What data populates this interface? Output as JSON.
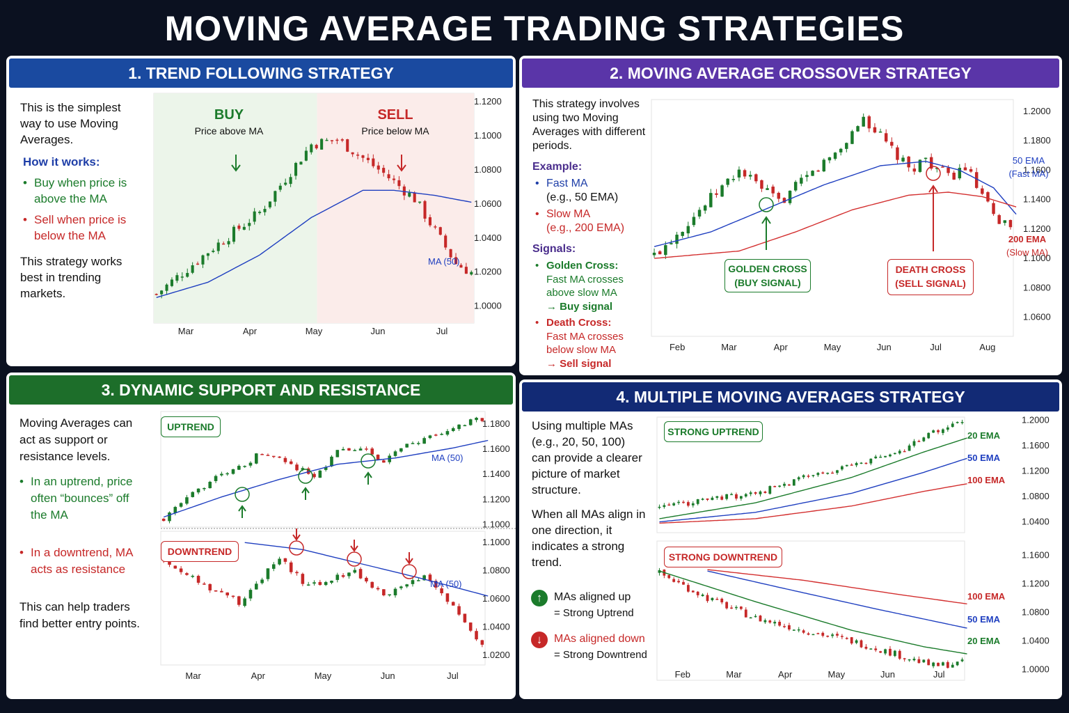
{
  "title": "MOVING  AVERAGE TRADING STRATEGIES",
  "colors": {
    "bg": "#0b1120",
    "p1_header": "#1a4aa0",
    "p2_header": "#5a35a8",
    "p3_header": "#1d6e2a",
    "p4_header": "#122a75",
    "bull": "#1b7b2b",
    "bear": "#c62828",
    "ma_blue": "#1f3fc0",
    "ma_green": "#1b7b2b",
    "ma_red": "#d32f2f"
  },
  "panel1": {
    "header": "1. TREND FOLLOWING STRATEGY",
    "intro": "This is the simplest way to use Moving Averages.",
    "how_title": "How it works:",
    "buy_kw": "Buy",
    "buy_rest": " when price is above the MA",
    "sell_kw": "Sell",
    "sell_rest": " when price is below the MA",
    "outro": "This strategy works best in trending markets.",
    "buy_label": "BUY",
    "buy_sub": "Price above MA",
    "sell_label": "SELL",
    "sell_sub": "Price below MA",
    "ma_label": "MA (50)"
  },
  "panel2": {
    "header": "2. MOVING AVERAGE CROSSOVER STRATEGY",
    "intro": "This strategy involves using two Moving Averages with different periods.",
    "example_title": "Example:",
    "fast_kw": "Fast MA",
    "fast_sub": "(e.g., 50 EMA)",
    "slow_kw": "Slow MA",
    "slow_sub": "(e.g., 200 EMA)",
    "signals_title": "Signals:",
    "golden_kw": "Golden Cross:",
    "golden_l1": "Fast MA crosses",
    "golden_l2": "above slow MA",
    "golden_l3": "→ Buy signal",
    "death_kw": "Death Cross:",
    "death_l1": "Fast MA crosses",
    "death_l2": "below slow MA",
    "death_l3": "→ Sell signal",
    "golden_tag_1": "GOLDEN CROSS",
    "golden_tag_2": "(BUY SIGNAL)",
    "death_tag_1": "DEATH CROSS",
    "death_tag_2": "(SELL SIGNAL)",
    "fast_label_1": "50 EMA",
    "fast_label_2": "(Fast MA)",
    "slow_label_1": "200 EMA",
    "slow_label_2": "(Slow MA)"
  },
  "panel3": {
    "header": "3. DYNAMIC SUPPORT AND RESISTANCE",
    "intro": "Moving Averages can act as support or resistance levels.",
    "up_kw": "In an uptrend",
    "up_rest": ", price often “bounces” off the MA",
    "down_text": "In a downtrend, MA acts as resistance",
    "outro": "This can help traders find better entry points.",
    "uptrend_tag": "UPTREND",
    "downtrend_tag": "DOWNTREND",
    "ma_label": "MA (50)"
  },
  "panel4": {
    "header": "4. MULTIPLE MOVING AVERAGES STRATEGY",
    "intro": "Using multiple MAs (e.g., 20, 50, 100) can provide a clearer picture of market structure.",
    "mid": "When all MAs align in one direction, it indicates a strong trend.",
    "up_l1": "MAs aligned up",
    "up_l2": "= Strong Uptrend",
    "down_l1": "MAs aligned down",
    "down_l2": "= Strong Downtrend",
    "strong_up_tag": "STRONG UPTREND",
    "strong_down_tag": "STRONG DOWNTREND",
    "ema20": "20 EMA",
    "ema50": "50 EMA",
    "ema100": "100 EMA"
  },
  "chart_data": [
    {
      "id": "trend-following",
      "type": "candlestick",
      "x_ticks": [
        "Mar",
        "Apr",
        "May",
        "Jun",
        "Jul"
      ],
      "y_ticks": [
        "1.1200",
        "1.1000",
        "1.0800",
        "1.0600",
        "1.0400",
        "1.0200",
        "1.0000"
      ],
      "ylim": [
        0.99,
        1.125
      ],
      "n": 62,
      "close_path": [
        [
          0,
          1.007
        ],
        [
          10,
          1.032
        ],
        [
          20,
          1.055
        ],
        [
          30,
          1.095
        ],
        [
          35,
          1.098
        ],
        [
          44,
          1.078
        ],
        [
          50,
          1.063
        ],
        [
          58,
          1.025
        ],
        [
          62,
          1.018
        ]
      ],
      "series": [
        {
          "name": "MA (50)",
          "path": [
            [
              0,
              1.005
            ],
            [
              10,
              1.014
            ],
            [
              20,
              1.03
            ],
            [
              30,
              1.052
            ],
            [
              40,
              1.068
            ],
            [
              46,
              1.068
            ],
            [
              54,
              1.065
            ],
            [
              61,
              1.061
            ]
          ]
        }
      ],
      "annotations": [
        "BUY",
        "SELL"
      ]
    },
    {
      "id": "crossover",
      "type": "candlestick",
      "x_ticks": [
        "Feb",
        "Mar",
        "Apr",
        "May",
        "Jun",
        "Jul",
        "Aug"
      ],
      "y_ticks": [
        "1.2000",
        "1.1800",
        "1.1600",
        "1.1400",
        "1.1200",
        "1.1000",
        "1.0800",
        "1.0600"
      ],
      "ylim": [
        1.047,
        1.208
      ],
      "n": 64,
      "close_path": [
        [
          0,
          1.102
        ],
        [
          15,
          1.16
        ],
        [
          22,
          1.138
        ],
        [
          33,
          1.175
        ],
        [
          37,
          1.196
        ],
        [
          45,
          1.16
        ],
        [
          48,
          1.168
        ],
        [
          52,
          1.155
        ],
        [
          55,
          1.162
        ],
        [
          60,
          1.128
        ],
        [
          64,
          1.12
        ]
      ],
      "series": [
        {
          "name": "50 EMA",
          "path": [
            [
              0,
              1.108
            ],
            [
              10,
              1.118
            ],
            [
              20,
              1.134
            ],
            [
              30,
              1.15
            ],
            [
              40,
              1.163
            ],
            [
              48,
              1.166
            ],
            [
              54,
              1.16
            ],
            [
              60,
              1.148
            ],
            [
              64,
              1.13
            ]
          ]
        },
        {
          "name": "200 EMA",
          "path": [
            [
              0,
              1.1
            ],
            [
              15,
              1.105
            ],
            [
              25,
              1.118
            ],
            [
              35,
              1.133
            ],
            [
              45,
              1.143
            ],
            [
              52,
              1.145
            ],
            [
              58,
              1.142
            ],
            [
              64,
              1.135
            ]
          ]
        }
      ],
      "annotations": [
        "GOLDEN CROSS (BUY SIGNAL)",
        "DEATH CROSS (SELL SIGNAL)"
      ]
    },
    {
      "id": "support",
      "type": "candlestick",
      "x_ticks": [
        "Mar",
        "Apr",
        "May",
        "Jun",
        "Jul"
      ],
      "y_ticks": [
        "1.1800",
        "1.1600",
        "1.1400",
        "1.1200",
        "1.1000"
      ],
      "ylim": [
        1.098,
        1.19
      ],
      "n": 56,
      "close_path": [
        [
          0,
          1.105
        ],
        [
          8,
          1.135
        ],
        [
          13,
          1.145
        ],
        [
          17,
          1.158
        ],
        [
          22,
          1.148
        ],
        [
          26,
          1.138
        ],
        [
          30,
          1.158
        ],
        [
          35,
          1.16
        ],
        [
          38,
          1.15
        ],
        [
          42,
          1.163
        ],
        [
          48,
          1.172
        ],
        [
          53,
          1.183
        ]
      ],
      "series": [
        {
          "name": "MA (50)",
          "path": [
            [
              0,
              1.106
            ],
            [
              10,
              1.122
            ],
            [
              20,
              1.136
            ],
            [
              30,
              1.148
            ],
            [
              40,
              1.153
            ],
            [
              50,
              1.161
            ],
            [
              56,
              1.167
            ]
          ]
        }
      ],
      "annotations": [
        "UPTREND"
      ]
    },
    {
      "id": "resistance",
      "type": "candlestick",
      "x_ticks": [
        "Mar",
        "Apr",
        "May",
        "Jun",
        "Jul"
      ],
      "y_ticks": [
        "1.1000",
        "1.0800",
        "1.0600",
        "1.0400",
        "1.0200"
      ],
      "ylim": [
        1.013,
        1.108
      ],
      "n": 56,
      "close_path": [
        [
          0,
          1.088
        ],
        [
          6,
          1.072
        ],
        [
          13,
          1.058
        ],
        [
          20,
          1.088
        ],
        [
          25,
          1.068
        ],
        [
          33,
          1.08
        ],
        [
          38,
          1.062
        ],
        [
          45,
          1.075
        ],
        [
          49,
          1.06
        ],
        [
          56,
          1.022
        ]
      ],
      "series": [
        {
          "name": "MA (50)",
          "path": [
            [
              14,
              1.1
            ],
            [
              24,
              1.095
            ],
            [
              34,
              1.085
            ],
            [
              44,
              1.075
            ],
            [
              56,
              1.062
            ]
          ]
        }
      ],
      "annotations": [
        "DOWNTREND"
      ]
    },
    {
      "id": "multi-up",
      "type": "candlestick",
      "x_ticks": [],
      "y_ticks": [
        "1.2000",
        "1.1600",
        "1.1200",
        "1.0800",
        "1.0400"
      ],
      "ylim": [
        1.023,
        1.205
      ],
      "n": 64,
      "close_path": [
        [
          0,
          1.062
        ],
        [
          10,
          1.075
        ],
        [
          20,
          1.085
        ],
        [
          30,
          1.11
        ],
        [
          40,
          1.128
        ],
        [
          50,
          1.15
        ],
        [
          58,
          1.185
        ],
        [
          64,
          1.2
        ]
      ],
      "series": [
        {
          "name": "20 EMA",
          "path": [
            [
              0,
              1.045
            ],
            [
              20,
              1.07
            ],
            [
              40,
              1.11
            ],
            [
              55,
              1.15
            ],
            [
              64,
              1.172
            ]
          ]
        },
        {
          "name": "50 EMA",
          "path": [
            [
              0,
              1.04
            ],
            [
              20,
              1.055
            ],
            [
              40,
              1.085
            ],
            [
              55,
              1.118
            ],
            [
              64,
              1.14
            ]
          ]
        },
        {
          "name": "100 EMA",
          "path": [
            [
              0,
              1.038
            ],
            [
              20,
              1.045
            ],
            [
              40,
              1.065
            ],
            [
              55,
              1.088
            ],
            [
              64,
              1.1
            ]
          ]
        }
      ],
      "annotations": [
        "STRONG UPTREND"
      ]
    },
    {
      "id": "multi-down",
      "type": "candlestick",
      "x_ticks": [
        "Feb",
        "Mar",
        "Apr",
        "May",
        "Jun",
        "Jul"
      ],
      "y_ticks": [
        "1.1600",
        "1.1200",
        "1.0800",
        "1.0400",
        "1.0000"
      ],
      "ylim": [
        0.985,
        1.18
      ],
      "n": 64,
      "close_path": [
        [
          0,
          1.135
        ],
        [
          10,
          1.1
        ],
        [
          20,
          1.072
        ],
        [
          30,
          1.055
        ],
        [
          40,
          1.04
        ],
        [
          50,
          1.02
        ],
        [
          57,
          1.005
        ],
        [
          64,
          1.01
        ]
      ],
      "series": [
        {
          "name": "20 EMA",
          "path": [
            [
              0,
              1.138
            ],
            [
              20,
              1.095
            ],
            [
              40,
              1.055
            ],
            [
              55,
              1.032
            ],
            [
              64,
              1.022
            ]
          ]
        },
        {
          "name": "50 EMA",
          "path": [
            [
              10,
              1.138
            ],
            [
              25,
              1.115
            ],
            [
              45,
              1.085
            ],
            [
              64,
              1.058
            ]
          ]
        },
        {
          "name": "100 EMA",
          "path": [
            [
              10,
              1.14
            ],
            [
              30,
              1.125
            ],
            [
              50,
              1.105
            ],
            [
              64,
              1.092
            ]
          ]
        }
      ],
      "annotations": [
        "STRONG DOWNTREND"
      ]
    }
  ]
}
